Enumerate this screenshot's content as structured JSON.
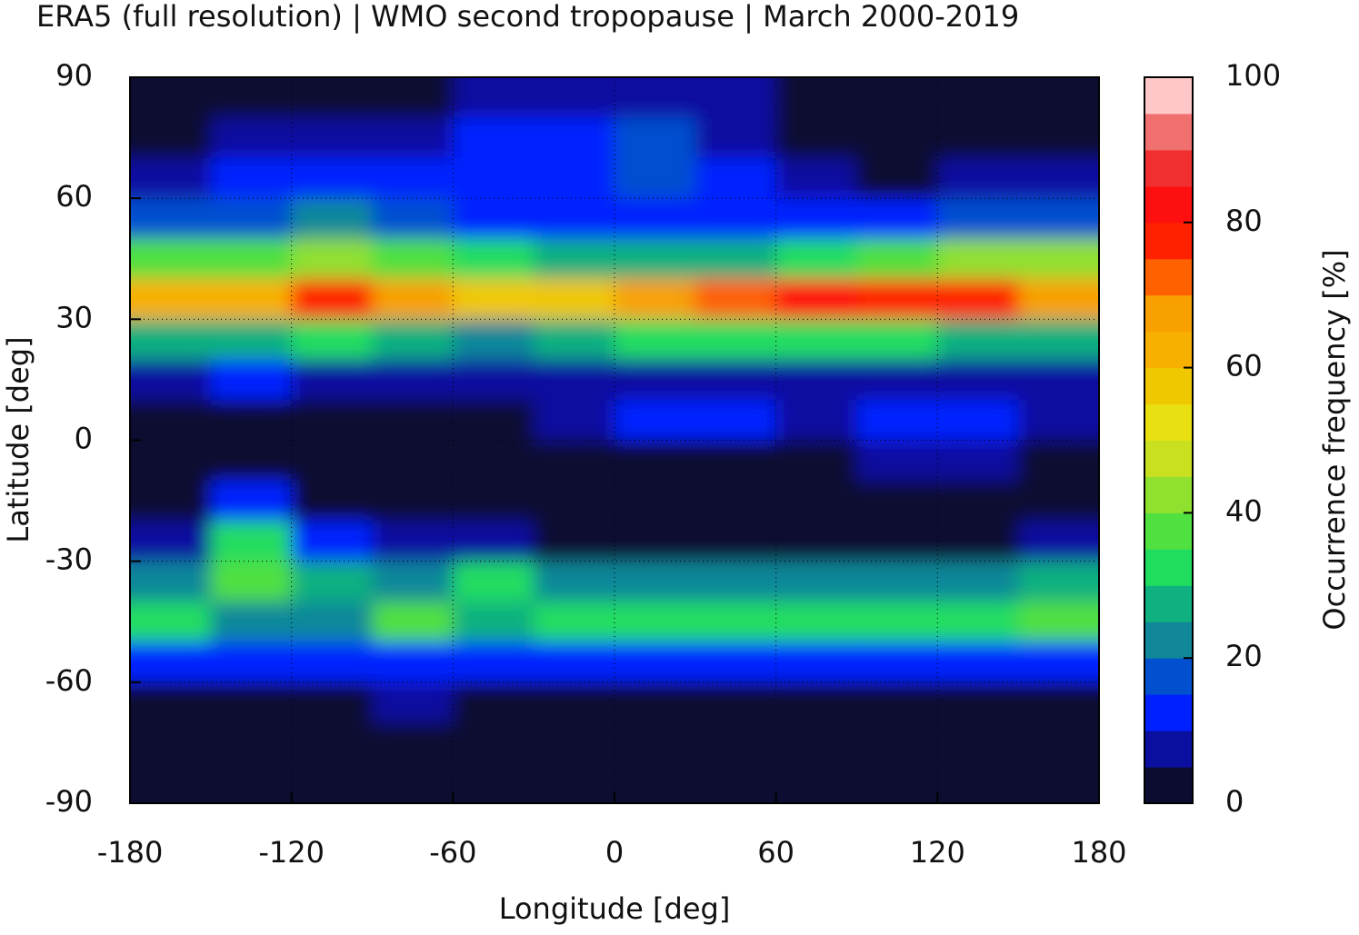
{
  "chart_data": {
    "type": "heatmap",
    "title": "ERA5 (full resolution) | WMO second tropopause | March 2000-2019",
    "xlabel": "Longitude [deg]",
    "ylabel": "Latitude [deg]",
    "colorbar_label": "Occurrence frequency [%]",
    "xlim": [
      -180,
      180
    ],
    "xticks": [
      -180,
      -120,
      -60,
      0,
      60,
      120,
      180
    ],
    "ylim": [
      -90,
      90
    ],
    "yticks": [
      -90,
      -60,
      -30,
      0,
      30,
      60,
      90
    ],
    "x": [
      -165,
      -135,
      -105,
      -75,
      -45,
      -15,
      15,
      45,
      75,
      105,
      135,
      165
    ],
    "y": [
      85,
      75,
      65,
      55,
      45,
      35,
      25,
      15,
      5,
      -5,
      -15,
      -25,
      -35,
      -45,
      -55,
      -65,
      -75,
      -85
    ],
    "z": [
      [
        0,
        0,
        0,
        0,
        5,
        5,
        5,
        5,
        0,
        0,
        0,
        0
      ],
      [
        0,
        5,
        5,
        5,
        10,
        10,
        15,
        5,
        0,
        0,
        0,
        0
      ],
      [
        5,
        10,
        10,
        10,
        10,
        10,
        15,
        10,
        5,
        0,
        5,
        5
      ],
      [
        15,
        15,
        20,
        15,
        10,
        10,
        10,
        10,
        10,
        10,
        15,
        15
      ],
      [
        35,
        35,
        40,
        35,
        30,
        25,
        25,
        25,
        30,
        35,
        40,
        40
      ],
      [
        60,
        60,
        75,
        65,
        55,
        55,
        65,
        70,
        80,
        75,
        75,
        65
      ],
      [
        25,
        25,
        30,
        25,
        20,
        25,
        30,
        30,
        30,
        30,
        25,
        25
      ],
      [
        5,
        10,
        5,
        5,
        5,
        5,
        5,
        5,
        5,
        5,
        5,
        5
      ],
      [
        0,
        0,
        0,
        0,
        0,
        5,
        10,
        10,
        5,
        10,
        10,
        5
      ],
      [
        0,
        0,
        0,
        0,
        0,
        0,
        0,
        0,
        0,
        5,
        5,
        0
      ],
      [
        0,
        10,
        0,
        0,
        0,
        0,
        0,
        0,
        0,
        0,
        0,
        0
      ],
      [
        5,
        30,
        10,
        5,
        5,
        0,
        0,
        0,
        0,
        0,
        0,
        5
      ],
      [
        20,
        35,
        25,
        20,
        30,
        20,
        20,
        20,
        20,
        20,
        20,
        25
      ],
      [
        30,
        20,
        20,
        35,
        25,
        30,
        30,
        30,
        30,
        30,
        30,
        35
      ],
      [
        10,
        10,
        10,
        10,
        10,
        10,
        10,
        10,
        10,
        10,
        10,
        10
      ],
      [
        0,
        0,
        0,
        5,
        0,
        0,
        0,
        0,
        0,
        0,
        0,
        0
      ],
      [
        0,
        0,
        0,
        0,
        0,
        0,
        0,
        0,
        0,
        0,
        0,
        0
      ],
      [
        0,
        0,
        0,
        0,
        0,
        0,
        0,
        0,
        0,
        0,
        0,
        0
      ]
    ],
    "levels": [
      0,
      5,
      10,
      15,
      20,
      25,
      30,
      35,
      40,
      45,
      50,
      55,
      60,
      65,
      70,
      75,
      80,
      85,
      90,
      95,
      100
    ],
    "colors": [
      "#0c0c30",
      "#0a0fa0",
      "#0020ff",
      "#0050d0",
      "#10889a",
      "#10b080",
      "#20dd60",
      "#50e040",
      "#90e030",
      "#c8e020",
      "#e8e010",
      "#f0c800",
      "#f8b000",
      "#f8a000",
      "#ff6000",
      "#ff2000",
      "#ff1010",
      "#f03030",
      "#f07070",
      "#ffc8c8"
    ],
    "clim": [
      0,
      100
    ],
    "cticks": [
      0,
      20,
      40,
      60,
      80,
      100
    ],
    "grid": true
  }
}
